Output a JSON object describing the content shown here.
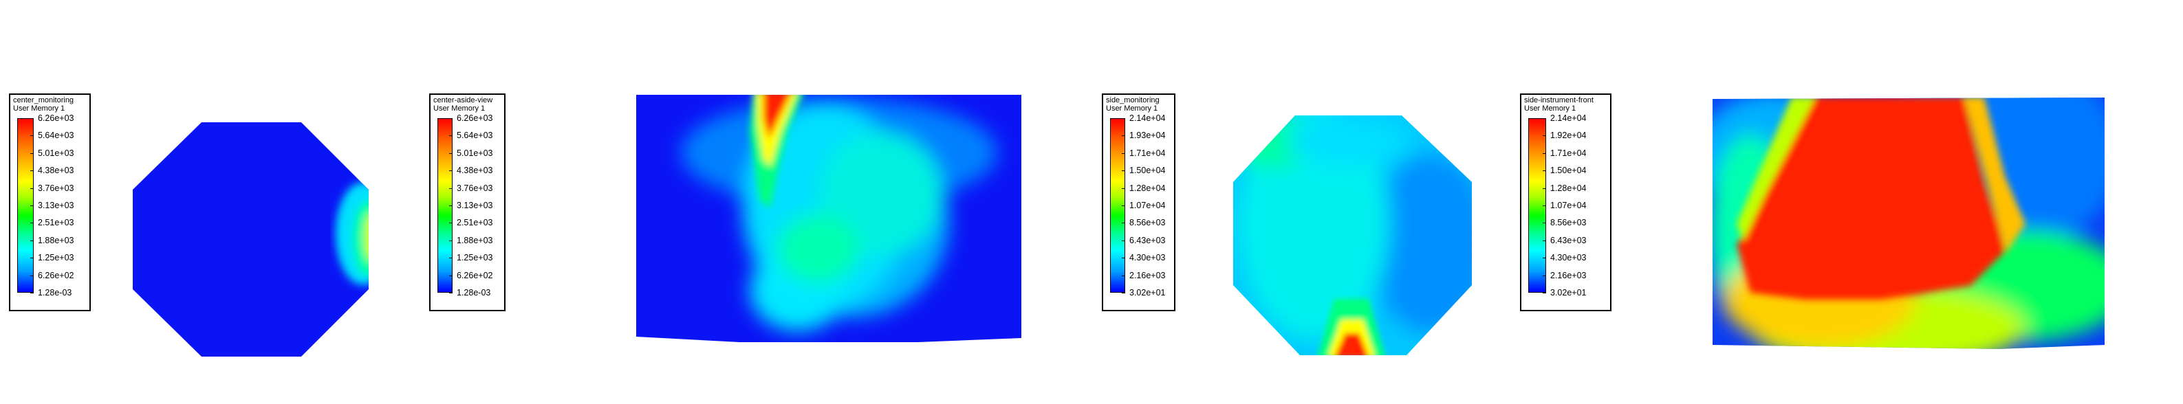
{
  "panels": [
    {
      "legend": {
        "title": "center_monitoring",
        "subtitle": "User Memory 1",
        "ticks": [
          "6.26e+03",
          "5.64e+03",
          "5.01e+03",
          "4.38e+03",
          "3.76e+03",
          "3.13e+03",
          "2.51e+03",
          "1.88e+03",
          "1.25e+03",
          "6.26e+02",
          "1.28e-03"
        ]
      }
    },
    {
      "legend": {
        "title": "center-aside-view",
        "subtitle": "User Memory 1",
        "ticks": [
          "6.26e+03",
          "5.64e+03",
          "5.01e+03",
          "4.38e+03",
          "3.76e+03",
          "3.13e+03",
          "2.51e+03",
          "1.88e+03",
          "1.25e+03",
          "6.26e+02",
          "1.28e-03"
        ]
      }
    },
    {
      "legend": {
        "title": "side_monitoring",
        "subtitle": "User Memory 1",
        "ticks": [
          "2.14e+04",
          "1.93e+04",
          "1.71e+04",
          "1.50e+04",
          "1.28e+04",
          "1.07e+04",
          "8.56e+03",
          "6.43e+03",
          "4.30e+03",
          "2.16e+03",
          "3.02e+01"
        ]
      }
    },
    {
      "legend": {
        "title": "side-instrument-front",
        "subtitle": "User Memory 1",
        "ticks": [
          "2.14e+04",
          "1.92e+04",
          "1.71e+04",
          "1.50e+04",
          "1.28e+04",
          "1.07e+04",
          "8.56e+03",
          "6.43e+03",
          "4.30e+03",
          "2.16e+03",
          "3.02e+01"
        ]
      }
    }
  ],
  "colormap": [
    "#ff0000",
    "#ffff00",
    "#00ff00",
    "#00ffff",
    "#0000ff"
  ]
}
